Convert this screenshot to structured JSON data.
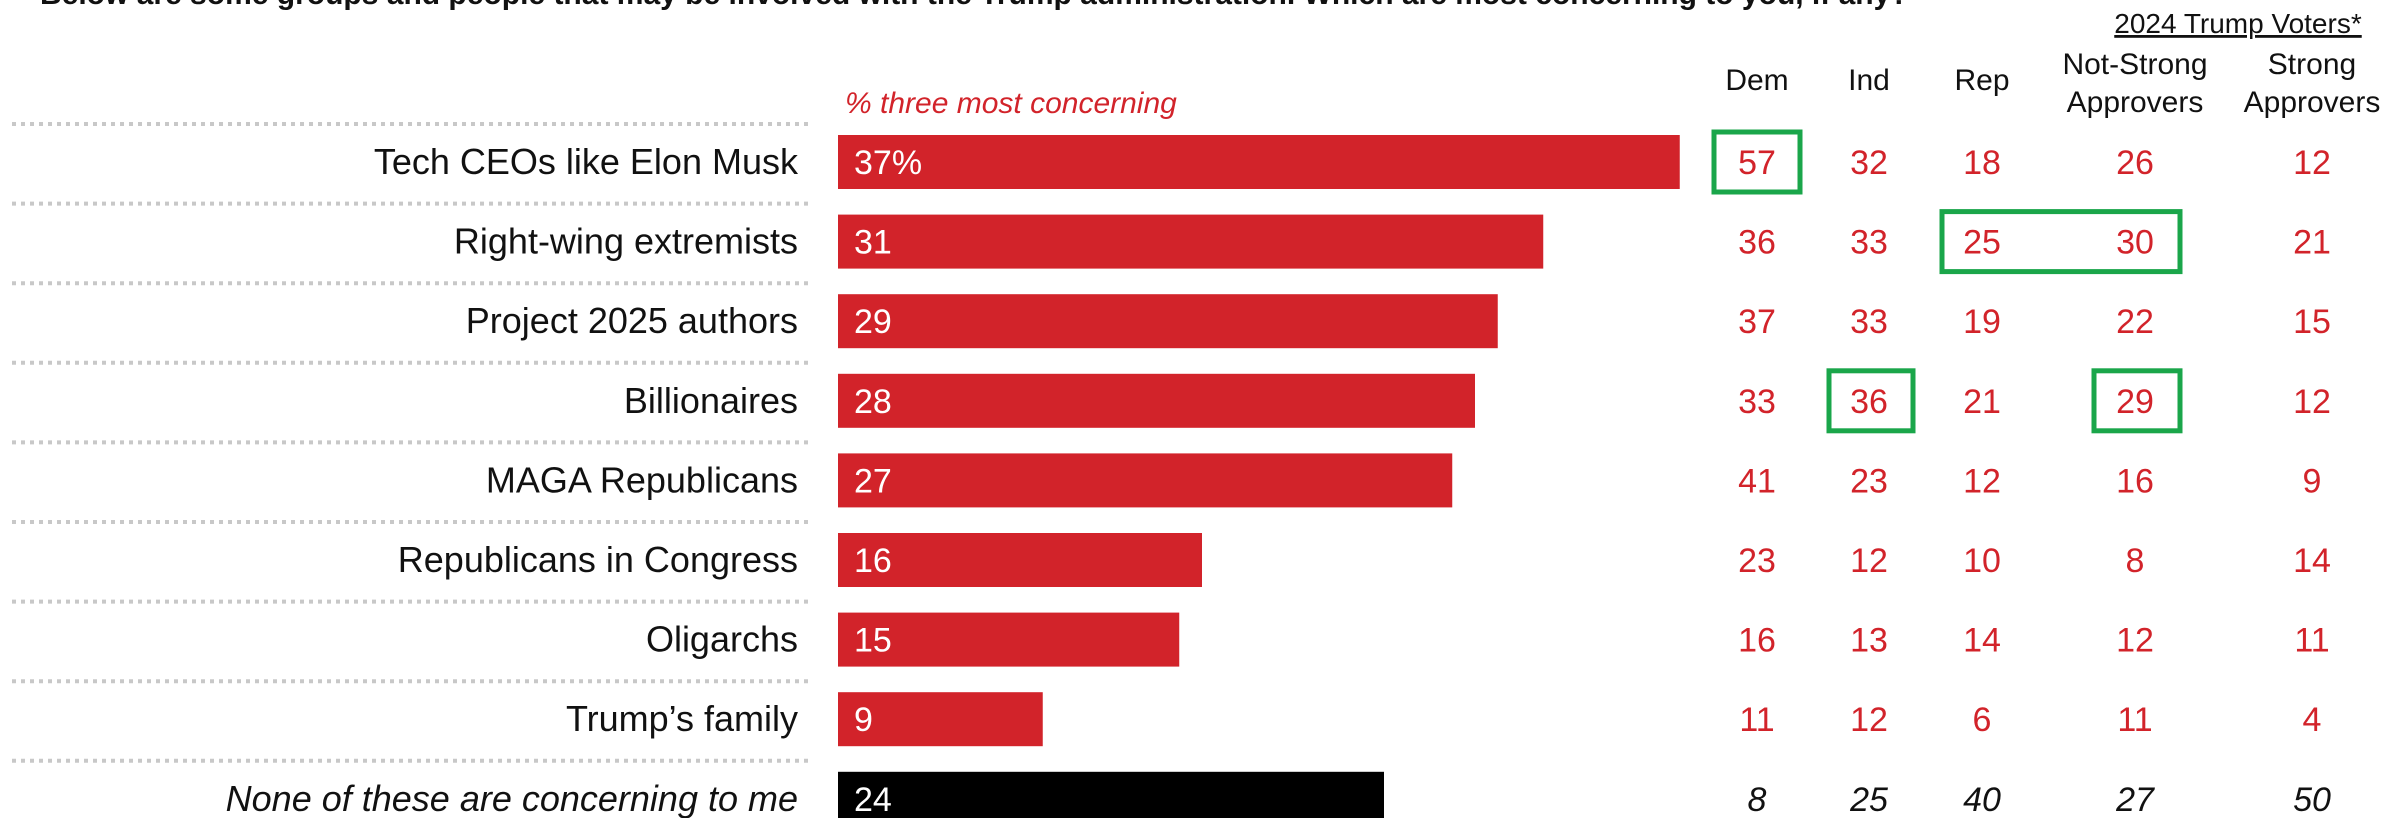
{
  "question": "Below are some groups and people that may be involved with the Trump administration. Which are most concerning to you, if any?",
  "chart_data": {
    "type": "bar",
    "subtitle": "% three most concerning",
    "categories": [
      "Tech CEOs like Elon Musk",
      "Right-wing extremists",
      "Project 2025 authors",
      "Billionaires",
      "MAGA Republicans",
      "Republicans in Congress",
      "Oligarchs",
      "Trump’s family",
      "None of these are concerning to me"
    ],
    "values": [
      37,
      31,
      29,
      28,
      27,
      16,
      15,
      9,
      24
    ],
    "value_labels": [
      "37%",
      "31",
      "29",
      "28",
      "27",
      "16",
      "15",
      "9",
      "24"
    ],
    "bar_colors": [
      "#d2232a",
      "#d2232a",
      "#d2232a",
      "#d2232a",
      "#d2232a",
      "#d2232a",
      "#d2232a",
      "#d2232a",
      "#000000"
    ],
    "group_header": "2024 Trump Voters*",
    "table": {
      "columns": [
        {
          "label": "Dem"
        },
        {
          "label": "Ind"
        },
        {
          "label": "Rep"
        },
        {
          "label": [
            "Not-Strong",
            "Approvers"
          ]
        },
        {
          "label": [
            "Strong",
            "Approvers"
          ]
        }
      ],
      "rows": [
        [
          57,
          32,
          18,
          26,
          12
        ],
        [
          36,
          33,
          25,
          30,
          21
        ],
        [
          37,
          33,
          19,
          22,
          15
        ],
        [
          33,
          36,
          21,
          29,
          12
        ],
        [
          41,
          23,
          12,
          16,
          9
        ],
        [
          23,
          12,
          10,
          8,
          14
        ],
        [
          16,
          13,
          14,
          12,
          11
        ],
        [
          11,
          12,
          6,
          11,
          4
        ],
        [
          8,
          25,
          40,
          27,
          50
        ]
      ],
      "highlighted_cells": [
        [
          0,
          0
        ],
        [
          1,
          2
        ],
        [
          1,
          3
        ],
        [
          3,
          1
        ],
        [
          3,
          3
        ]
      ]
    }
  },
  "colors": {
    "bar": "#d2232a",
    "none_bar": "#000000",
    "table_values": "#d2232a",
    "highlight_box": "#1aa64a",
    "dotted_rule": "#c8c8c8"
  }
}
